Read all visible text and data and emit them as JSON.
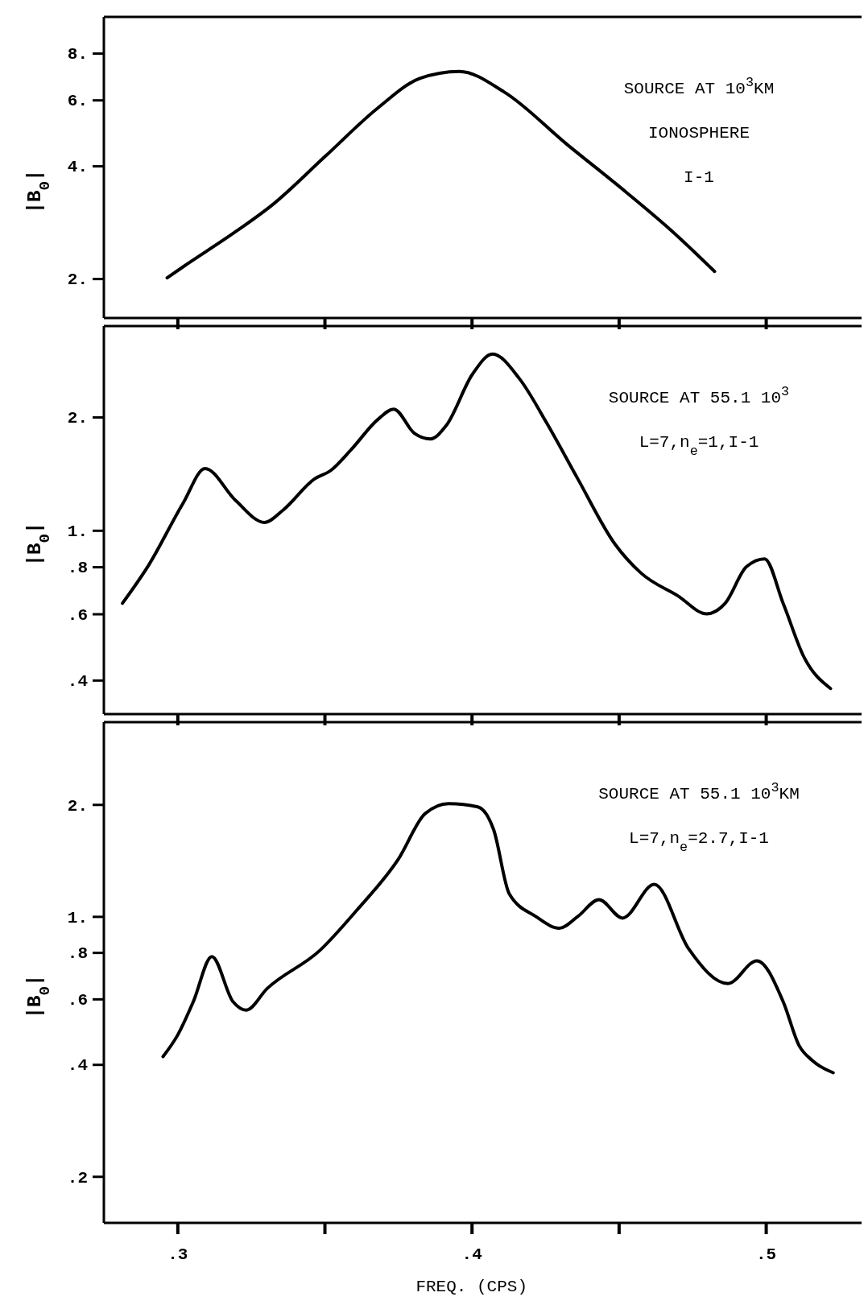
{
  "chart_data": [
    {
      "type": "line",
      "ylabel": "|B$_{0}$|",
      "log": true,
      "line_style": "solid",
      "tick_labels": "y",
      "annotations": [
        "SOURCE AT 10$^{3}$KM",
        "IONOSPHERE",
        "I-1"
      ],
      "xlim": [
        0.275,
        0.532
      ],
      "xticks": [
        {
          "value": 0.3,
          "label": null
        },
        {
          "value": 0.35,
          "label": null
        },
        {
          "value": 0.4,
          "label": null
        },
        {
          "value": 0.45,
          "label": null
        },
        {
          "value": 0.5,
          "label": null
        }
      ],
      "ylim": [
        1.57,
        10
      ],
      "yticks": [
        {
          "value": 2,
          "label": "2."
        },
        {
          "value": 4,
          "label": "4."
        },
        {
          "value": 6,
          "label": "6."
        },
        {
          "value": 8,
          "label": "8."
        }
      ],
      "series": [
        {
          "color": "#000000",
          "x": [
            0.2965,
            0.3019,
            0.3198,
            0.3323,
            0.3502,
            0.3681,
            0.3824,
            0.3958,
            0.4111,
            0.4325,
            0.4522,
            0.4683,
            0.4826
          ],
          "values": [
            2.01,
            2.15,
            2.67,
            3.15,
            4.24,
            5.71,
            6.85,
            7.15,
            6.3,
            4.56,
            3.42,
            2.67,
            2.09
          ]
        }
      ]
    },
    {
      "type": "line",
      "ylabel": "|B$_{0}$|",
      "log": true,
      "line_style": "solid",
      "tick_labels": "y",
      "annotations": [
        "SOURCE AT 55.1 10$^{3}$",
        "L=7,n$_{e}$=1,I-1"
      ],
      "xlim": [
        0.275,
        0.532
      ],
      "xticks": [
        {
          "value": 0.3,
          "label": null
        },
        {
          "value": 0.35,
          "label": null
        },
        {
          "value": 0.4,
          "label": null
        },
        {
          "value": 0.45,
          "label": null
        },
        {
          "value": 0.5,
          "label": null
        }
      ],
      "ylim": [
        0.325,
        3.49
      ],
      "yticks": [
        {
          "value": 0.4,
          "label": ".4"
        },
        {
          "value": 0.6,
          "label": ".6"
        },
        {
          "value": 0.8,
          "label": ".8"
        },
        {
          "value": 1,
          "label": "1."
        },
        {
          "value": 2,
          "label": "2."
        }
      ],
      "series": [
        {
          "color": "#000000",
          "x": [
            0.2813,
            0.2903,
            0.3019,
            0.3094,
            0.3198,
            0.3296,
            0.3358,
            0.3466,
            0.352,
            0.3591,
            0.3681,
            0.3735,
            0.3806,
            0.386,
            0.3914,
            0.4003,
            0.4071,
            0.4164,
            0.4255,
            0.4361,
            0.4487,
            0.4576,
            0.4701,
            0.4799,
            0.4862,
            0.4934,
            0.4996,
            0.5059,
            0.513,
            0.522
          ],
          "values": [
            0.64,
            0.81,
            1.18,
            1.46,
            1.2,
            1.05,
            1.13,
            1.37,
            1.44,
            1.64,
            1.97,
            2.1,
            1.81,
            1.75,
            1.9,
            2.6,
            2.94,
            2.52,
            1.93,
            1.37,
            0.92,
            0.77,
            0.67,
            0.6,
            0.64,
            0.8,
            0.84,
            0.64,
            0.46,
            0.38
          ]
        }
      ]
    },
    {
      "type": "line",
      "ylabel": "|B$_{0}$|",
      "xlabel": "FREQ. (CPS)",
      "log": true,
      "line_style": "solid",
      "annotations": [
        "SOURCE AT 55.1 10$^{3}$KM",
        "L=7,n$_{e}$=2.7,I-1"
      ],
      "xlim": [
        0.275,
        0.532
      ],
      "xticks": [
        {
          "value": 0.3,
          "label": ".3"
        },
        {
          "value": 0.35,
          "label": null
        },
        {
          "value": 0.4,
          "label": ".4"
        },
        {
          "value": 0.45,
          "label": null
        },
        {
          "value": 0.5,
          "label": ".5"
        }
      ],
      "ylim": [
        0.15,
        3.33
      ],
      "yticks": [
        {
          "value": 0.2,
          "label": ".2"
        },
        {
          "value": 0.4,
          "label": ".4"
        },
        {
          "value": 0.6,
          "label": ".6"
        },
        {
          "value": 0.8,
          "label": ".8"
        },
        {
          "value": 1,
          "label": "1."
        },
        {
          "value": 2,
          "label": "2."
        }
      ],
      "series": [
        {
          "color": "#000000",
          "x": [
            0.2951,
            0.3001,
            0.3054,
            0.3117,
            0.3189,
            0.3234,
            0.3305,
            0.3484,
            0.361,
            0.3752,
            0.3842,
            0.3922,
            0.4021,
            0.4075,
            0.4128,
            0.4218,
            0.4298,
            0.4361,
            0.4433,
            0.4513,
            0.4621,
            0.4737,
            0.4871,
            0.497,
            0.5059,
            0.5113,
            0.5158,
            0.5229
          ],
          "values": [
            0.42,
            0.48,
            0.59,
            0.78,
            0.59,
            0.56,
            0.64,
            0.81,
            1.04,
            1.43,
            1.89,
            2.01,
            1.97,
            1.71,
            1.15,
            1.0,
            0.93,
            1.0,
            1.11,
            0.99,
            1.22,
            0.82,
            0.66,
            0.76,
            0.59,
            0.45,
            0.41,
            0.38
          ]
        }
      ]
    }
  ]
}
